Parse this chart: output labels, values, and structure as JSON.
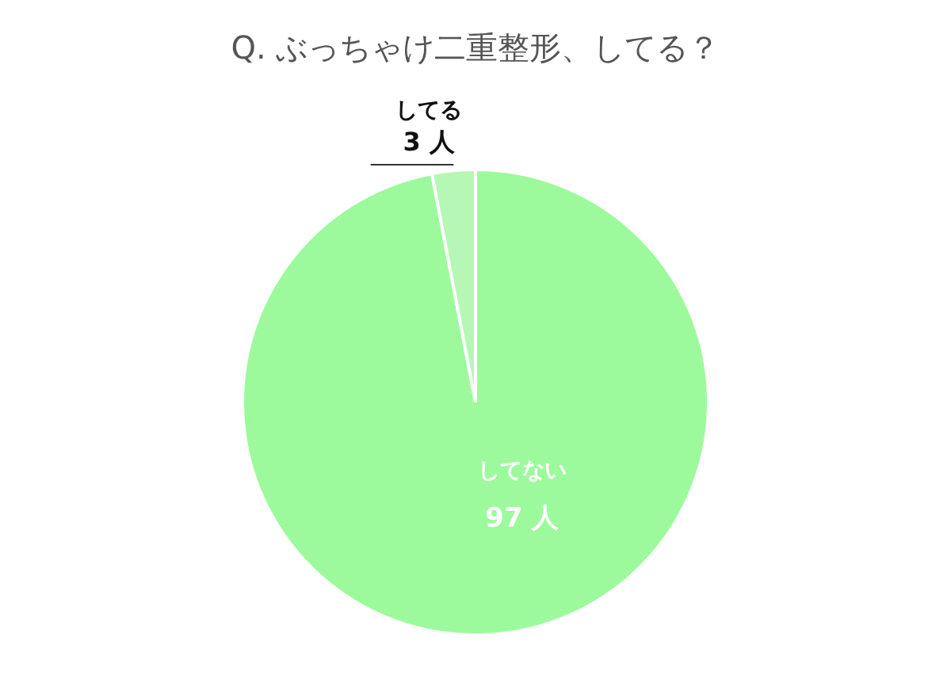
{
  "chart_data": {
    "type": "pie",
    "title": "Q. ぶっちゃけ二重整形、してる？",
    "categories": [
      "してない",
      "してる"
    ],
    "values": [
      97,
      3
    ],
    "value_labels": [
      "97 人",
      "3 人"
    ],
    "colors": [
      "#9cfa9c",
      "#b6f7b6"
    ],
    "legend": false
  }
}
